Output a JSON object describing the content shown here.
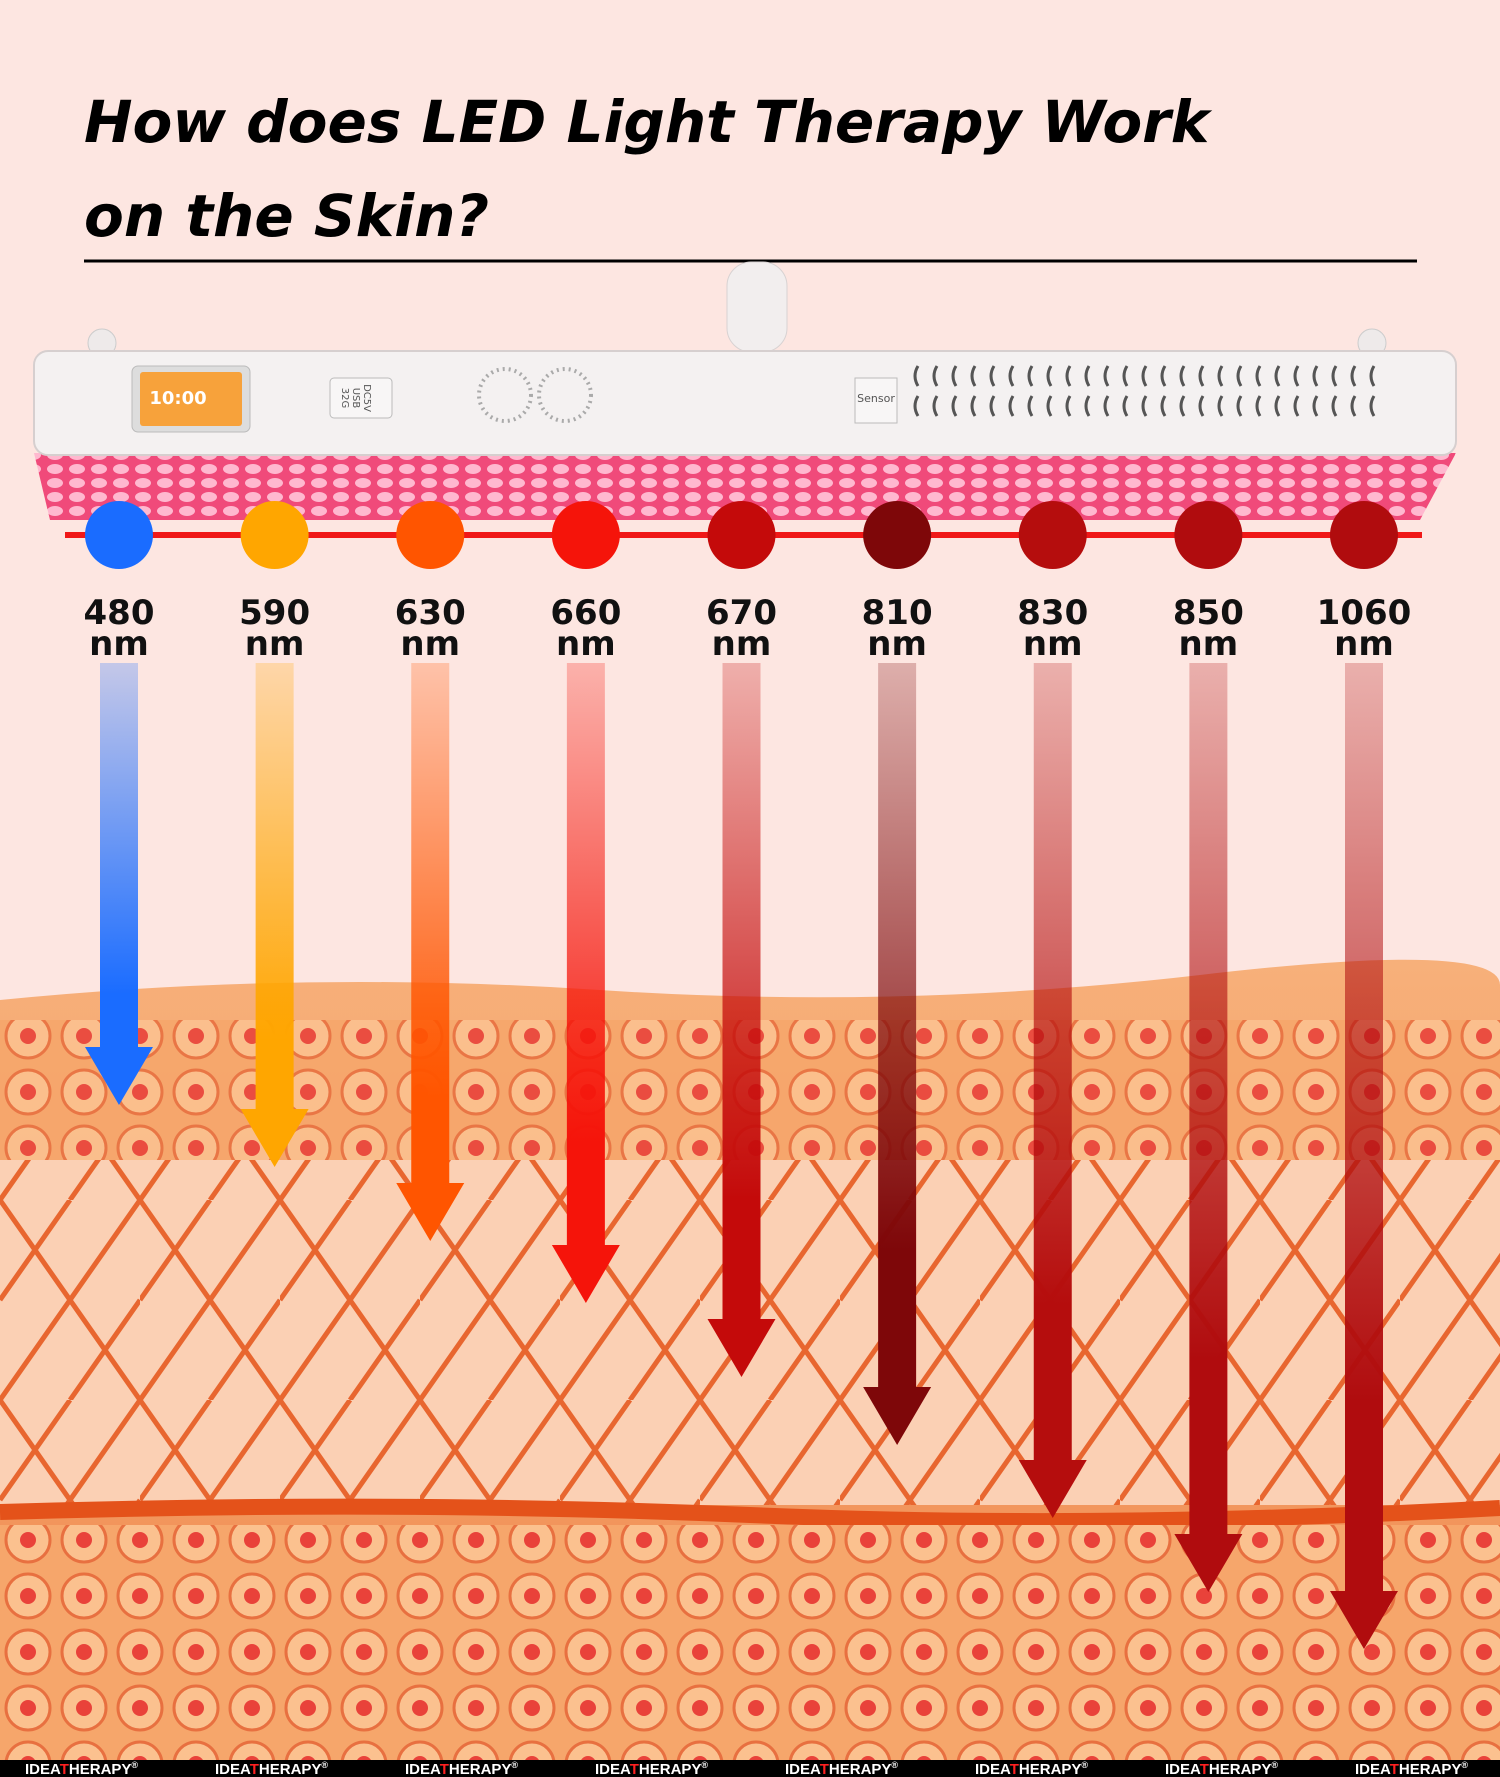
{
  "header": {
    "title_line1": "How does LED Light Therapy Work",
    "title_line2": "on the Skin",
    "title_mark": "?"
  },
  "device": {
    "screen_time": "10:00",
    "port_labels": [
      "32G",
      "USB",
      "DC5V"
    ],
    "sensor": "Sensor"
  },
  "wavelengths": [
    {
      "value": 480,
      "unit": "nm",
      "color": "#1a6cff"
    },
    {
      "value": 590,
      "unit": "nm",
      "color": "#ffa600"
    },
    {
      "value": 630,
      "unit": "nm",
      "color": "#ff5500"
    },
    {
      "value": 660,
      "unit": "nm",
      "color": "#f5140a"
    },
    {
      "value": 670,
      "unit": "nm",
      "color": "#c40a0a"
    },
    {
      "value": 810,
      "unit": "nm",
      "color": "#7e0709"
    },
    {
      "value": 830,
      "unit": "nm",
      "color": "#b50d0d"
    },
    {
      "value": 850,
      "unit": "nm",
      "color": "#b00c0e"
    },
    {
      "value": 1060,
      "unit": "nm",
      "color": "#b00c0e"
    }
  ],
  "footer": {
    "brand_start": "IDEA",
    "brand_highlight": "T",
    "brand_end": "HERAPY",
    "brand_mark": "®"
  }
}
